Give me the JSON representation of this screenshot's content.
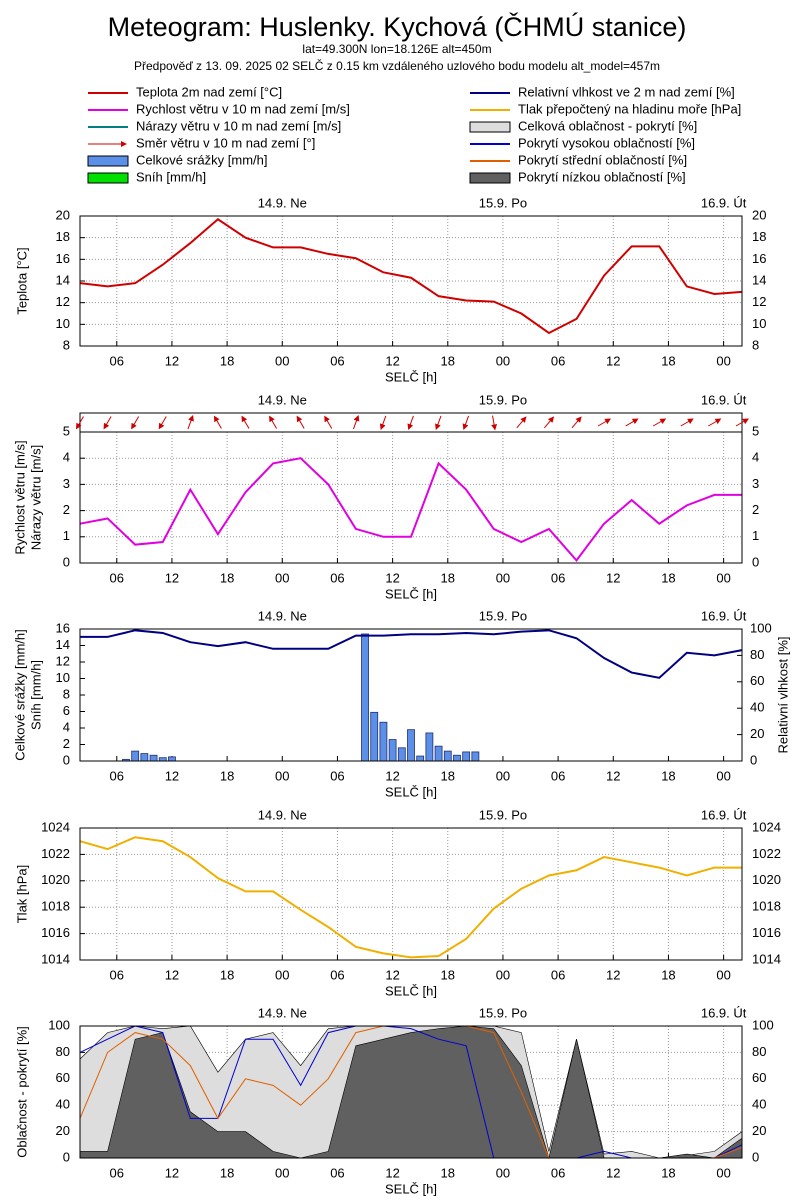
{
  "title": "Meteogram: Huslenky. Kychová (ČHMÚ stanice)",
  "subtitle": [
    "lat=49.300N lon=18.126E alt=450m",
    "Předpověď z 13. 09. 2025 02 SELČ z 0.15 km vzdáleného uzlového bodu modelu alt_model=457m"
  ],
  "x_axis": {
    "xlim": [
      2,
      74
    ],
    "xticks": [
      {
        "value": 6,
        "label": "06"
      },
      {
        "value": 12,
        "label": "12"
      },
      {
        "value": 18,
        "label": "18"
      },
      {
        "value": 24,
        "label": "00"
      },
      {
        "value": 30,
        "label": "06"
      },
      {
        "value": 36,
        "label": "12"
      },
      {
        "value": 42,
        "label": "18"
      },
      {
        "value": 48,
        "label": "00"
      },
      {
        "value": 54,
        "label": "06"
      },
      {
        "value": 60,
        "label": "12"
      },
      {
        "value": 66,
        "label": "18"
      },
      {
        "value": 72,
        "label": "00"
      }
    ],
    "xlabel": "SELČ [h]",
    "days": [
      {
        "x": 24,
        "label": "14.9. Ne"
      },
      {
        "x": 48,
        "label": "15.9. Po"
      },
      {
        "x": 72,
        "label": "16.9. Út"
      }
    ]
  },
  "chart_data": [
    {
      "type": "line",
      "ylabels": [
        "Teplota [°C]"
      ],
      "ylim": [
        8,
        20
      ],
      "yticks": [
        8,
        10,
        12,
        14,
        16,
        18,
        20
      ],
      "grid": true,
      "x": [
        2,
        5,
        8,
        11,
        14,
        17,
        20,
        23,
        26,
        29,
        32,
        35,
        38,
        41,
        44,
        47,
        50,
        53,
        56,
        59,
        62,
        65,
        68,
        71,
        74
      ],
      "series": [
        {
          "name": "Teplota 2m nad zemí [°C]",
          "color": "#d00000",
          "style": "line",
          "values": [
            13.8,
            13.5,
            13.8,
            15.5,
            17.5,
            19.7,
            18,
            17.1,
            17.1,
            16.5,
            16.1,
            14.8,
            14.3,
            12.6,
            12.2,
            12.1,
            11,
            9.2,
            10.5,
            14.5,
            17.2,
            17.2,
            13.5,
            12.8,
            13.0
          ]
        }
      ]
    },
    {
      "type": "line",
      "ylabels": [
        "Rychlost větru [m/s]",
        "Nárazy větru [m/s]"
      ],
      "ylim": [
        0,
        5
      ],
      "yticks": [
        0,
        1,
        2,
        3,
        4,
        5
      ],
      "grid": true,
      "x": [
        2,
        5,
        8,
        11,
        14,
        17,
        20,
        23,
        26,
        29,
        32,
        35,
        38,
        41,
        44,
        47,
        50,
        53,
        56,
        59,
        62,
        65,
        68,
        71,
        74
      ],
      "series": [
        {
          "name": "Rychlost větru v 10 m nad zemí [m/s]",
          "color": "#e000e0",
          "style": "line",
          "values": [
            1.5,
            1.7,
            0.7,
            0.8,
            2.8,
            1.1,
            2.7,
            3.8,
            4.0,
            3.0,
            1.3,
            1.0,
            1.0,
            3.8,
            2.8,
            1.3,
            0.8,
            1.3,
            0.1,
            1.5,
            2.4,
            1.5,
            2.2,
            2.6,
            2.6
          ]
        },
        {
          "name": "Nárazy větru v 10 m nad zemí [m/s]",
          "color": "#008080",
          "style": "line"
        },
        {
          "name": "Směr větru v 10 m nad zemí [°]",
          "color": "#d00000",
          "style": "arrow",
          "directions": [
            30,
            30,
            30,
            30,
            200,
            150,
            150,
            150,
            150,
            150,
            200,
            20,
            20,
            20,
            20,
            350,
            220,
            220,
            220,
            240,
            240,
            240,
            240,
            240,
            240
          ]
        }
      ]
    },
    {
      "type": "bar",
      "ylabels": [
        "Celkové srážky [mm/h]",
        "Sníh [mm/h]"
      ],
      "y2label": "Relativní vlhkost [%]",
      "ylim": [
        0,
        16
      ],
      "yticks": [
        0,
        2,
        4,
        6,
        8,
        10,
        12,
        14,
        16
      ],
      "y2lim": [
        0,
        100
      ],
      "y2ticks": [
        0,
        20,
        40,
        60,
        80,
        100
      ],
      "x": [
        7,
        8,
        9,
        10,
        11,
        12,
        33,
        34,
        35,
        36,
        37,
        38,
        39,
        40,
        41,
        42,
        43,
        44,
        45
      ],
      "series": [
        {
          "name": "Celkové srážky [mm/h]",
          "color": "#5b8fe8",
          "style": "bar",
          "values": [
            0.2,
            1.2,
            0.9,
            0.7,
            0.4,
            0.5,
            15.4,
            5.9,
            4.7,
            2.6,
            1.6,
            3.8,
            0.6,
            3.4,
            1.8,
            1.2,
            0.7,
            1.1,
            1.1
          ]
        },
        {
          "name": "Sníh [mm/h]",
          "color": "#00e000",
          "style": "bar"
        },
        {
          "name": "Relativní vlhkost ve 2 m nad zemí [%]",
          "color": "#000080",
          "style": "line",
          "axis": "y2",
          "x": [
            2,
            5,
            8,
            11,
            14,
            17,
            20,
            23,
            26,
            29,
            32,
            35,
            38,
            41,
            44,
            47,
            50,
            53,
            56,
            59,
            62,
            65,
            68,
            71,
            74
          ],
          "values": [
            94,
            94,
            99,
            97,
            90,
            87,
            90,
            85,
            85,
            85,
            95,
            95,
            96,
            96,
            97,
            96,
            98,
            99,
            93,
            78,
            67,
            63,
            82,
            80,
            84
          ]
        }
      ]
    },
    {
      "type": "line",
      "ylabels": [
        "Tlak [hPa]"
      ],
      "ylim": [
        1014,
        1024
      ],
      "yticks": [
        1014,
        1016,
        1018,
        1020,
        1022,
        1024
      ],
      "grid": true,
      "x": [
        2,
        5,
        8,
        11,
        14,
        17,
        20,
        23,
        26,
        29,
        32,
        35,
        38,
        41,
        44,
        47,
        50,
        53,
        56,
        59,
        62,
        65,
        68,
        71,
        74
      ],
      "series": [
        {
          "name": "Tlak přepočtený na hladinu moře [hPa]",
          "color": "#f0b000",
          "style": "line",
          "values": [
            1023,
            1022.4,
            1023.3,
            1023,
            1021.8,
            1020.2,
            1019.2,
            1019.2,
            1017.8,
            1016.5,
            1015,
            1014.5,
            1014.2,
            1014.3,
            1015.6,
            1017.9,
            1019.4,
            1020.4,
            1020.8,
            1021.8,
            1021.4,
            1021,
            1020.4,
            1021,
            1021
          ]
        }
      ]
    },
    {
      "type": "area",
      "ylabels": [
        "Oblačnost - pokrytí [%]"
      ],
      "ylim": [
        0,
        100
      ],
      "yticks": [
        0,
        20,
        40,
        60,
        80,
        100
      ],
      "grid": true,
      "x": [
        2,
        5,
        8,
        11,
        14,
        17,
        20,
        23,
        26,
        29,
        32,
        35,
        38,
        41,
        44,
        47,
        50,
        53,
        56,
        59,
        62,
        65,
        68,
        71,
        74
      ],
      "series": [
        {
          "name": "Celková oblačnost - pokrytí [%]",
          "color": "#dddddd",
          "style": "area",
          "values": [
            75,
            95,
            100,
            98,
            100,
            65,
            90,
            95,
            70,
            98,
            100,
            100,
            100,
            100,
            100,
            100,
            95,
            5,
            90,
            3,
            5,
            0,
            2,
            5,
            20
          ]
        },
        {
          "name": "Pokrytí nízkou oblačností [%]",
          "color": "#606060",
          "style": "area",
          "values": [
            5,
            5,
            90,
            95,
            35,
            20,
            20,
            5,
            0,
            5,
            85,
            90,
            95,
            98,
            100,
            98,
            70,
            0,
            90,
            0,
            0,
            0,
            3,
            0,
            15
          ]
        },
        {
          "name": "Pokrytí vysokou oblačností [%]",
          "color": "#0000d0",
          "style": "line",
          "values": [
            80,
            90,
            100,
            95,
            30,
            30,
            90,
            90,
            55,
            95,
            100,
            100,
            98,
            90,
            85,
            0,
            0,
            0,
            0,
            5,
            0,
            0,
            0,
            0,
            10
          ]
        },
        {
          "name": "Pokrytí střední oblačností [%]",
          "color": "#e06000",
          "style": "line",
          "values": [
            30,
            80,
            95,
            90,
            70,
            30,
            60,
            55,
            40,
            60,
            95,
            100,
            100,
            100,
            100,
            95,
            50,
            0,
            0,
            0,
            0,
            0,
            0,
            0,
            8
          ]
        }
      ]
    }
  ]
}
